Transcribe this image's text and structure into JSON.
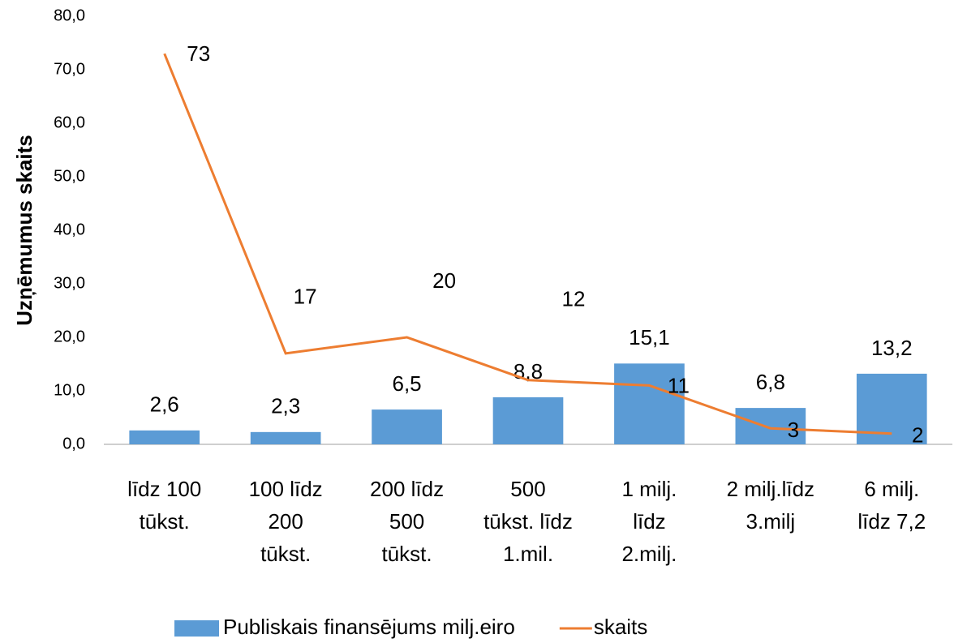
{
  "chart_data": {
    "type": "bar_line",
    "y_axis_label": "Uzņēmumus  skaits",
    "categories": [
      "līdz 100\ntūkst.",
      "100 līdz\n200\ntūkst.",
      "200 līdz\n500\ntūkst.",
      "500\ntūkst. līdz\n1.mil.",
      "1 milj.\nlīdz\n2.milj.",
      "2 milj.līdz\n3.milj",
      "6 milj.\nlīdz 7,2"
    ],
    "series": [
      {
        "name": "Publiskais finansējums milj.eiro",
        "type": "bar",
        "color": "#5b9bd5",
        "values": [
          2.6,
          2.3,
          6.5,
          8.8,
          15.1,
          6.8,
          13.2
        ],
        "value_labels": [
          "2,6",
          "2,3",
          "6,5",
          "8,8",
          "15,1",
          "6,8",
          "13,2"
        ]
      },
      {
        "name": "skaits",
        "type": "line",
        "color": "#ed7d31",
        "values": [
          73,
          17,
          20,
          12,
          11,
          3,
          2
        ]
      }
    ],
    "ylim": [
      0,
      80
    ],
    "yticks": [
      {
        "value": 0,
        "label": "0,0"
      },
      {
        "value": 10,
        "label": "10,0"
      },
      {
        "value": 20,
        "label": "20,0"
      },
      {
        "value": 30,
        "label": "30,0"
      },
      {
        "value": 40,
        "label": "40,0"
      },
      {
        "value": 50,
        "label": "50,0"
      },
      {
        "value": 60,
        "label": "60,0"
      },
      {
        "value": 70,
        "label": "70,0"
      },
      {
        "value": 80,
        "label": "80,0"
      }
    ],
    "grid": false,
    "legend": "bottom"
  }
}
